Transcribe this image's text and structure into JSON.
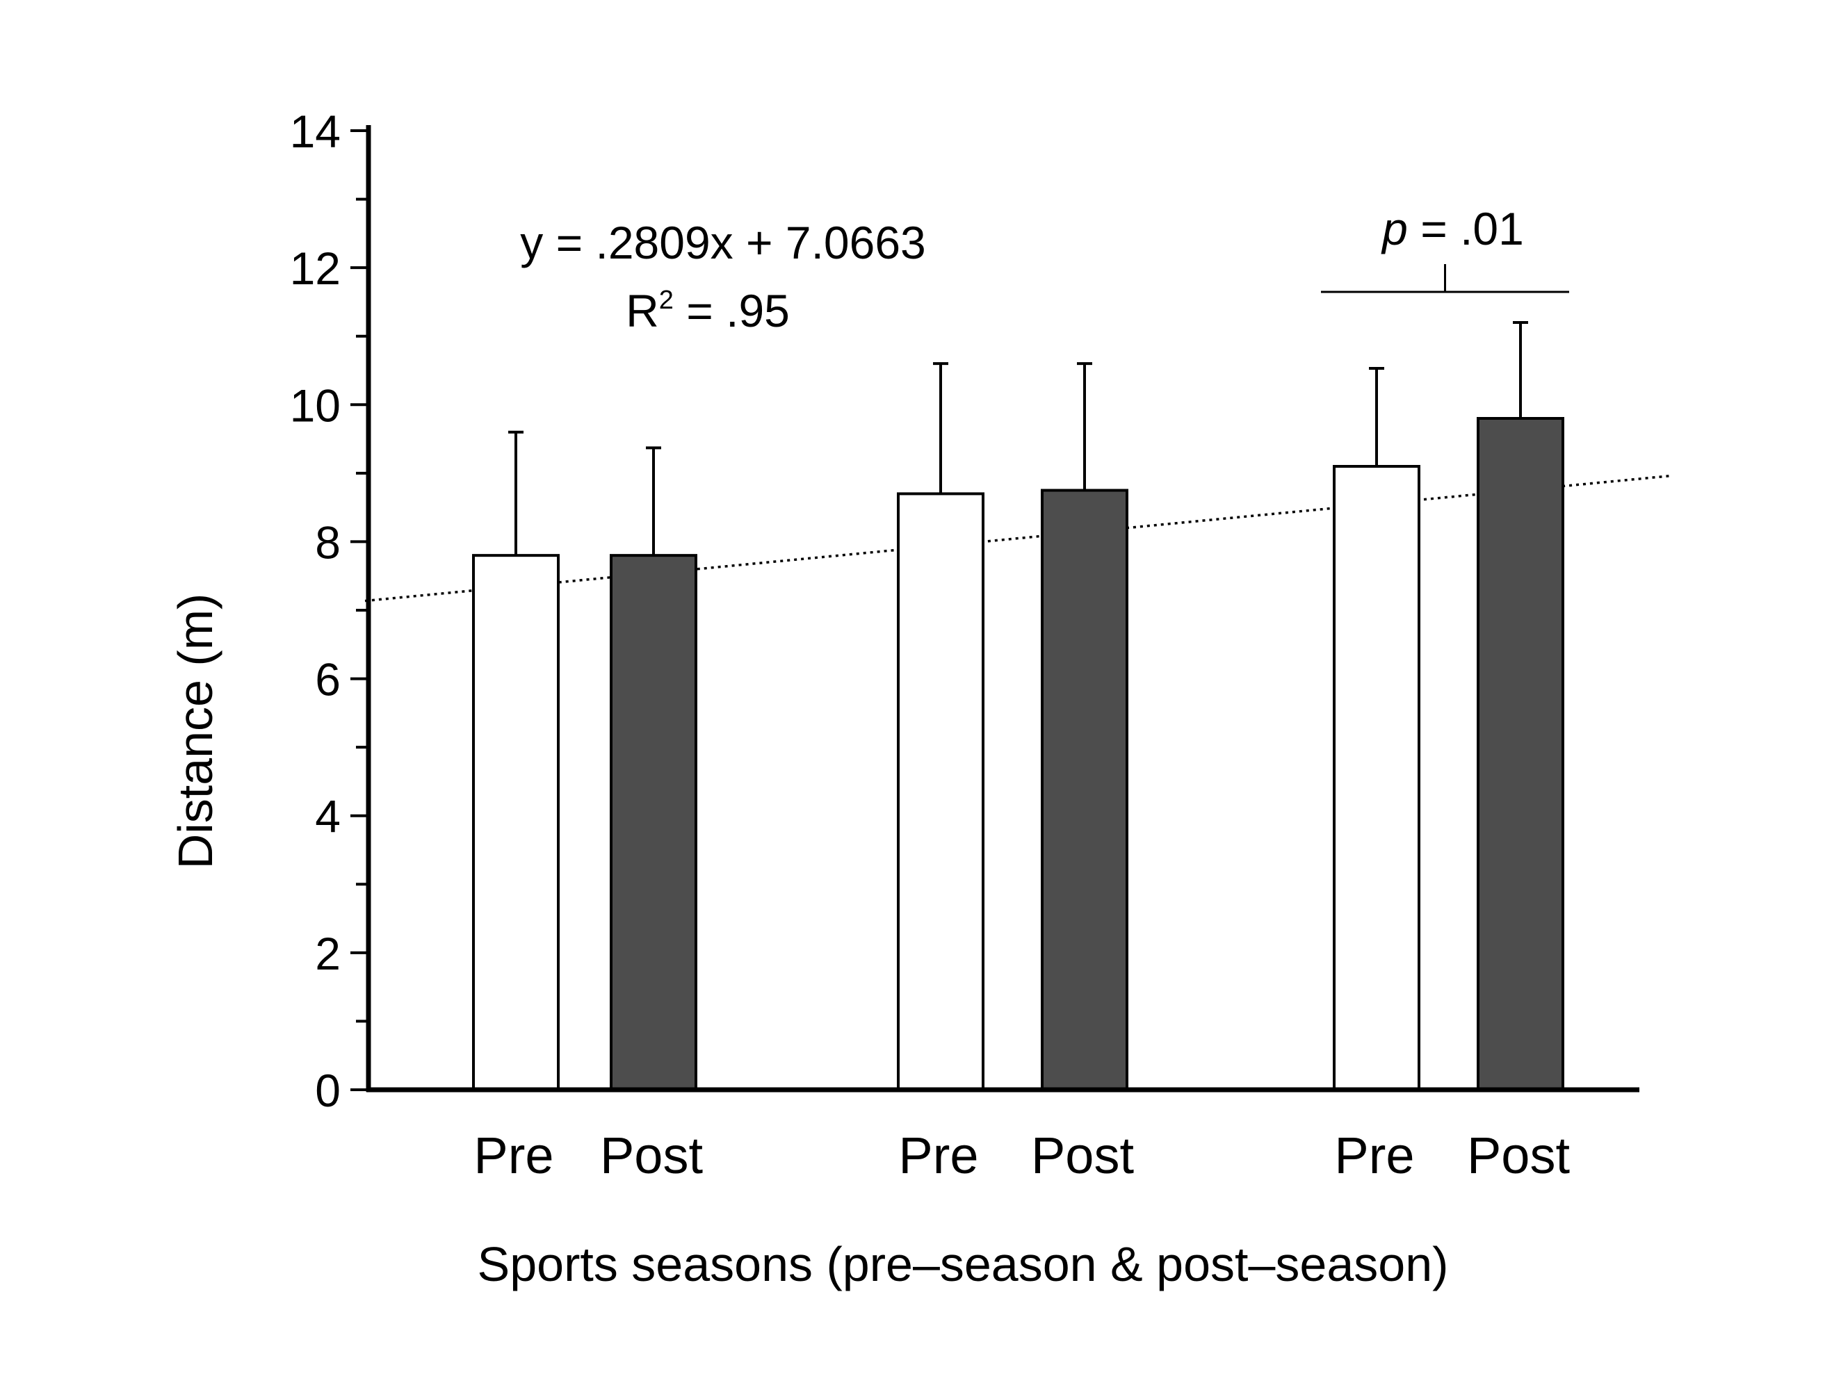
{
  "chart_data": {
    "type": "bar",
    "xlabel": "Sports seasons (pre–season & post–season)",
    "ylabel": "Distance (m)",
    "ylim": [
      0,
      14
    ],
    "yticks": [
      0,
      2,
      4,
      6,
      8,
      10,
      12,
      14
    ],
    "categories": [
      "Pre",
      "Post",
      "Pre",
      "Post",
      "Pre",
      "Post"
    ],
    "values": [
      7.8,
      7.8,
      8.7,
      8.75,
      9.1,
      9.8
    ],
    "error_upper": [
      9.6,
      9.37,
      10.6,
      10.6,
      10.53,
      11.2
    ],
    "bar_fill": [
      "#ffffff",
      "#4d4d4d",
      "#ffffff",
      "#4d4d4d",
      "#ffffff",
      "#4d4d4d"
    ],
    "trendline": {
      "equation": "y = .2809x + 7.0663",
      "r2_label": "R",
      "r2_sup": "2",
      "r2_value": " = .95",
      "style": "dotted",
      "slope": 0.2809,
      "intercept": 7.0663
    },
    "significance": {
      "p_symbol": "p",
      "p_value": " = .01",
      "between_bars": [
        4,
        5
      ]
    },
    "grid": false,
    "legend": "none"
  }
}
